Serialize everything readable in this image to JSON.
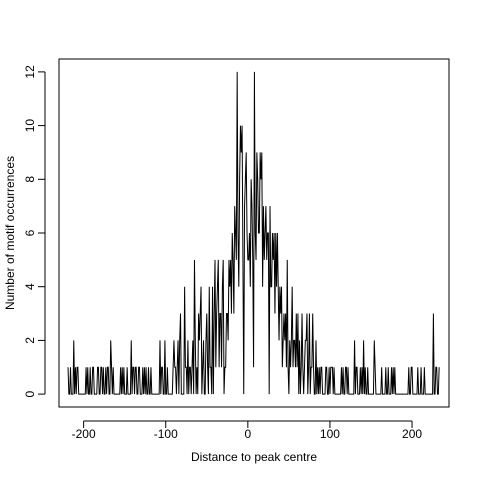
{
  "chart_data": {
    "type": "line",
    "title": "",
    "xlabel": "Distance to peak centre",
    "ylabel": "Number of motif occurrences",
    "xlim": [
      -230,
      245
    ],
    "ylim": [
      -0.48,
      12.48
    ],
    "xticks": [
      -200,
      -100,
      0,
      100,
      200
    ],
    "xtick_labels": [
      "-200",
      "-100",
      "0",
      "100",
      "200"
    ],
    "yticks": [
      0,
      2,
      4,
      6,
      8,
      10,
      12
    ],
    "ytick_labels": [
      "0",
      "2",
      "4",
      "6",
      "8",
      "10",
      "12"
    ],
    "grid": false,
    "legend": "none",
    "series": [
      {
        "color": "#000000",
        "x_start": -219,
        "x_step": 1,
        "values": [
          1,
          0,
          0,
          1,
          0,
          0,
          0,
          2,
          0,
          1,
          0,
          1,
          1,
          0,
          0,
          0,
          0,
          0,
          0,
          0,
          0,
          0,
          1,
          0,
          1,
          0,
          0,
          1,
          0,
          0,
          1,
          1,
          0,
          0,
          0,
          0,
          1,
          1,
          0,
          0,
          1,
          1,
          0,
          1,
          0,
          0,
          1,
          0,
          1,
          1,
          0,
          0,
          2,
          1,
          0,
          1,
          0,
          0,
          0,
          0,
          0,
          0,
          0,
          0,
          1,
          0,
          1,
          0,
          1,
          0,
          0,
          0,
          1,
          0,
          0,
          0,
          0,
          2,
          0,
          1,
          1,
          0,
          1,
          1,
          0,
          0,
          1,
          1,
          0,
          0,
          0,
          1,
          0,
          1,
          0,
          1,
          0,
          0,
          1,
          0,
          0,
          1,
          0,
          0,
          0,
          0,
          0,
          0,
          0,
          0,
          0,
          0,
          2,
          0,
          1,
          1,
          0,
          0,
          2,
          0,
          0,
          1,
          0,
          0,
          0,
          0,
          0,
          0,
          1,
          2,
          1,
          1,
          0,
          1,
          2,
          0,
          2,
          3,
          0,
          0,
          0,
          0,
          4,
          1,
          1,
          0,
          2,
          0,
          1,
          1,
          0,
          1,
          2,
          0,
          5,
          2,
          0,
          1,
          0,
          3,
          2,
          3,
          4,
          0,
          1,
          2,
          0,
          0,
          2,
          3,
          1,
          0,
          4,
          1,
          1,
          0,
          4,
          0,
          3,
          5,
          1,
          3,
          4,
          5,
          1,
          3,
          3,
          1,
          4,
          5,
          0,
          1,
          1,
          3,
          3,
          2,
          5,
          4,
          5,
          3,
          6,
          5,
          3,
          7,
          6,
          5,
          12,
          6,
          4,
          8,
          10,
          9,
          10,
          5,
          0,
          7,
          8,
          9,
          6,
          5,
          5,
          6,
          4,
          8,
          7,
          5,
          1,
          12,
          6,
          5,
          9,
          8,
          6,
          6,
          9,
          8,
          9,
          4,
          7,
          5,
          6,
          7,
          5,
          6,
          6,
          0,
          7,
          4,
          4,
          6,
          5,
          6,
          3,
          6,
          4,
          6,
          4,
          2,
          4,
          3,
          4,
          1,
          2,
          3,
          2,
          3,
          1,
          5,
          1,
          0,
          2,
          1,
          2,
          4,
          1,
          2,
          2,
          1,
          3,
          1,
          3,
          0,
          2,
          0,
          1,
          3,
          1,
          0,
          1,
          2,
          2,
          3,
          0,
          1,
          3,
          0,
          1,
          1,
          3,
          1,
          0,
          0,
          2,
          0,
          1,
          0,
          1,
          0,
          1,
          1,
          0,
          0,
          0,
          0,
          1,
          1,
          0,
          0,
          1,
          0,
          1,
          1,
          1,
          0,
          1,
          0,
          0,
          0,
          0,
          0,
          0,
          0,
          0,
          1,
          0,
          1,
          0,
          0,
          1,
          1,
          0,
          1,
          0,
          0,
          0,
          0,
          0,
          0,
          0,
          2,
          0,
          1,
          1,
          0,
          0,
          0,
          1,
          0,
          1,
          0,
          2,
          0,
          1,
          0,
          0,
          1,
          0,
          0,
          0,
          0,
          0,
          0,
          0,
          2,
          1,
          0,
          0,
          0,
          0,
          0,
          0,
          0,
          1,
          0,
          0,
          0,
          0,
          1,
          0,
          0,
          1,
          0,
          0,
          0,
          1,
          0,
          1,
          0,
          1,
          0,
          0,
          0,
          0,
          0,
          0,
          0,
          0,
          0,
          0,
          0,
          0,
          0,
          0,
          0,
          0,
          1,
          0,
          0,
          1,
          1,
          0,
          0,
          0,
          0,
          0,
          0,
          1,
          0,
          0,
          0,
          1,
          0,
          0,
          0,
          1,
          0,
          0,
          0,
          0,
          0,
          0,
          0,
          0,
          0,
          0,
          3,
          0,
          0,
          1,
          1,
          0,
          0,
          1
        ]
      }
    ]
  }
}
